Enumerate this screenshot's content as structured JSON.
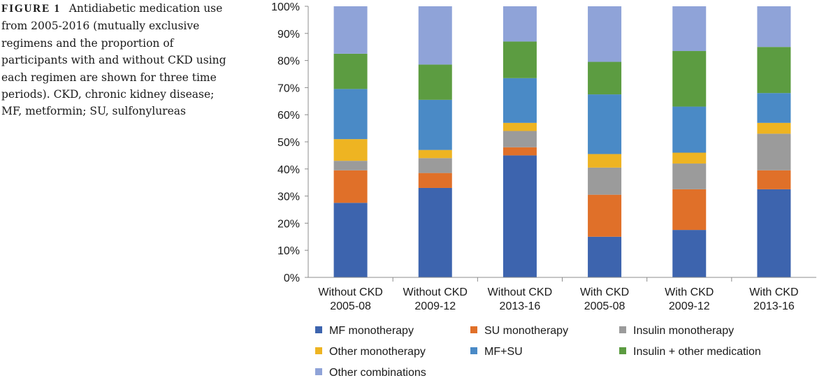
{
  "caption": {
    "label": "FIGURE 1",
    "text": "Antidiabetic medication use from 2005-2016 (mutually exclusive regimens and the proportion of participants with and without CKD using each regimen are shown for three time periods). CKD, chronic kidney disease; MF, metformin; SU, sulfonylureas"
  },
  "chart_data": {
    "type": "bar",
    "stacked": true,
    "title": "",
    "xlabel": "",
    "ylabel": "",
    "ylim": [
      0,
      100
    ],
    "y_ticks": [
      "0%",
      "10%",
      "20%",
      "30%",
      "40%",
      "50%",
      "60%",
      "70%",
      "80%",
      "90%",
      "100%"
    ],
    "grid": false,
    "legend_position": "bottom",
    "categories": [
      [
        "Without CKD",
        "2005-08"
      ],
      [
        "Without CKD",
        "2009-12"
      ],
      [
        "Without CKD",
        "2013-16"
      ],
      [
        "With CKD",
        "2005-08"
      ],
      [
        "With CKD",
        "2009-12"
      ],
      [
        "With CKD",
        "2013-16"
      ]
    ],
    "series": [
      {
        "name": "MF monotherapy",
        "color": "#3d64ae",
        "values": [
          27.5,
          33,
          45,
          15,
          17.5,
          32.5
        ]
      },
      {
        "name": "SU monotherapy",
        "color": "#e07029",
        "values": [
          12,
          5.5,
          3,
          15.5,
          15,
          7
        ]
      },
      {
        "name": "Insulin monotherapy",
        "color": "#9b9b9b",
        "values": [
          3.5,
          5.5,
          6,
          10,
          9.5,
          13.5
        ]
      },
      {
        "name": "Other monotherapy",
        "color": "#eeb422",
        "values": [
          8,
          3,
          3,
          5,
          4,
          4
        ]
      },
      {
        "name": "MF+SU",
        "color": "#4a8ac6",
        "values": [
          18.5,
          18.5,
          16.5,
          22,
          17,
          11
        ]
      },
      {
        "name": "Insulin + other medication",
        "color": "#5c9c41",
        "values": [
          13,
          13,
          13.5,
          12,
          20.5,
          17
        ]
      },
      {
        "name": "Other combinations",
        "color": "#8fa3d8",
        "values": [
          17.5,
          21.5,
          13,
          20.5,
          16.5,
          15
        ]
      }
    ]
  }
}
